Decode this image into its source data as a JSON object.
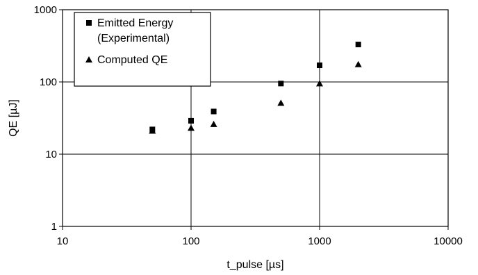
{
  "chart_data": {
    "type": "scatter",
    "xscale": "log",
    "yscale": "log",
    "xlim": [
      10,
      10000
    ],
    "ylim": [
      1,
      1000
    ],
    "grid": true,
    "legend_position": "top-left",
    "xlabel": "t_pulse [µs]",
    "ylabel": "QE [µJ]",
    "x_ticks": [
      "10",
      "100",
      "1000",
      "10000"
    ],
    "y_ticks": [
      "1",
      "10",
      "100",
      "1000"
    ],
    "legend": {
      "entries": [
        {
          "lines": [
            "Emitted Energy",
            "(Experimental)"
          ],
          "marker": "square"
        },
        {
          "lines": [
            "Computed QE"
          ],
          "marker": "triangle"
        }
      ]
    },
    "series": [
      {
        "marker": "square",
        "x": [
          50,
          100,
          150,
          500,
          1000,
          2000
        ],
        "y": [
          22,
          29,
          39,
          95,
          170,
          330
        ]
      },
      {
        "marker": "triangle",
        "x": [
          50,
          100,
          150,
          500,
          1000,
          2000
        ],
        "y": [
          21,
          23,
          26,
          51,
          95,
          175
        ]
      }
    ]
  }
}
